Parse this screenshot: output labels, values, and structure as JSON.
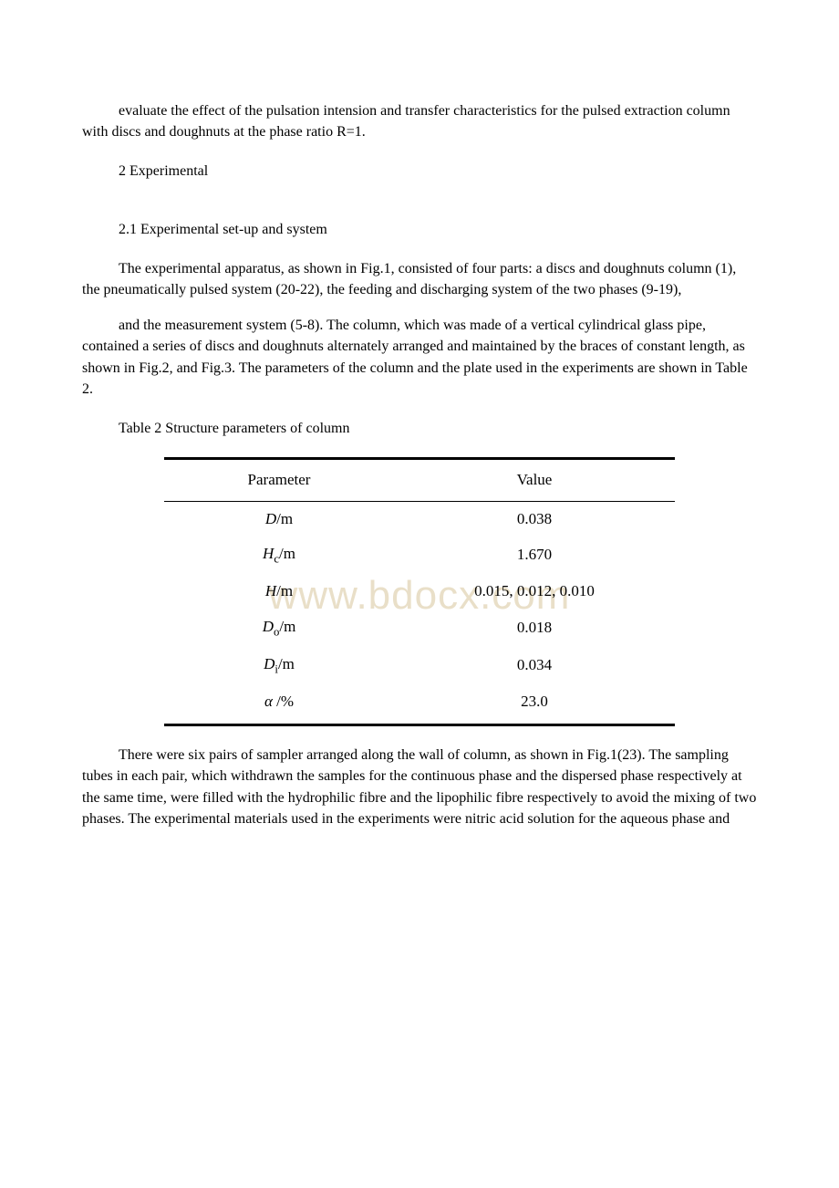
{
  "paragraphs": {
    "p1": "evaluate the effect of the pulsation intension and transfer characteristics for the pulsed extraction column with discs and doughnuts at the phase ratio R=1.",
    "p2": "2 Experimental",
    "p3": "2.1 Experimental set-up and system",
    "p4": "The experimental apparatus, as shown in Fig.1, consisted of four parts: a discs and doughnuts column (1), the pneumatically pulsed system (20-22), the feeding and discharging system of the two phases (9-19),",
    "p5": "and the measurement system (5-8). The column, which was made of a vertical cylindrical glass pipe, contained a series of discs and doughnuts alternately arranged and maintained by the braces of constant length, as shown in Fig.2, and Fig.3. The parameters of the column and the plate used in the experiments are shown in Table 2.",
    "p6": "Table 2 Structure parameters of column",
    "p7": "There were six pairs of sampler arranged along the wall of column, as shown in Fig.1(23). The sampling tubes in each pair, which withdrawn the samples for the continuous phase and the dispersed phase respectively at the same time, were filled with the hydrophilic fibre and the lipophilic fibre respectively to avoid the mixing of two phases. The experimental materials used in the experiments were nitric acid solution for the aqueous phase and"
  },
  "table": {
    "header_param": "Parameter",
    "header_value": "Value",
    "rows": {
      "r0": {
        "unit": "/m",
        "value": "0.038"
      },
      "r1": {
        "unit": "/m",
        "value": "1.670"
      },
      "r2": {
        "unit": "/m",
        "value": "0.015,  0.012,  0.010"
      },
      "r3": {
        "unit": "/m",
        "value": "0.018"
      },
      "r4": {
        "unit": "/m",
        "value": "0.034"
      },
      "r5": {
        "unit": "/%",
        "value": "23.0"
      }
    },
    "symbols": {
      "D": "D",
      "Hc_H": "H",
      "Hc_c": "c",
      "H": "H",
      "Do_D": "D",
      "Do_o": "o",
      "Di_D": "D",
      "Di_i": "i",
      "alpha": "α"
    }
  },
  "watermark": "www.bdocx.com"
}
